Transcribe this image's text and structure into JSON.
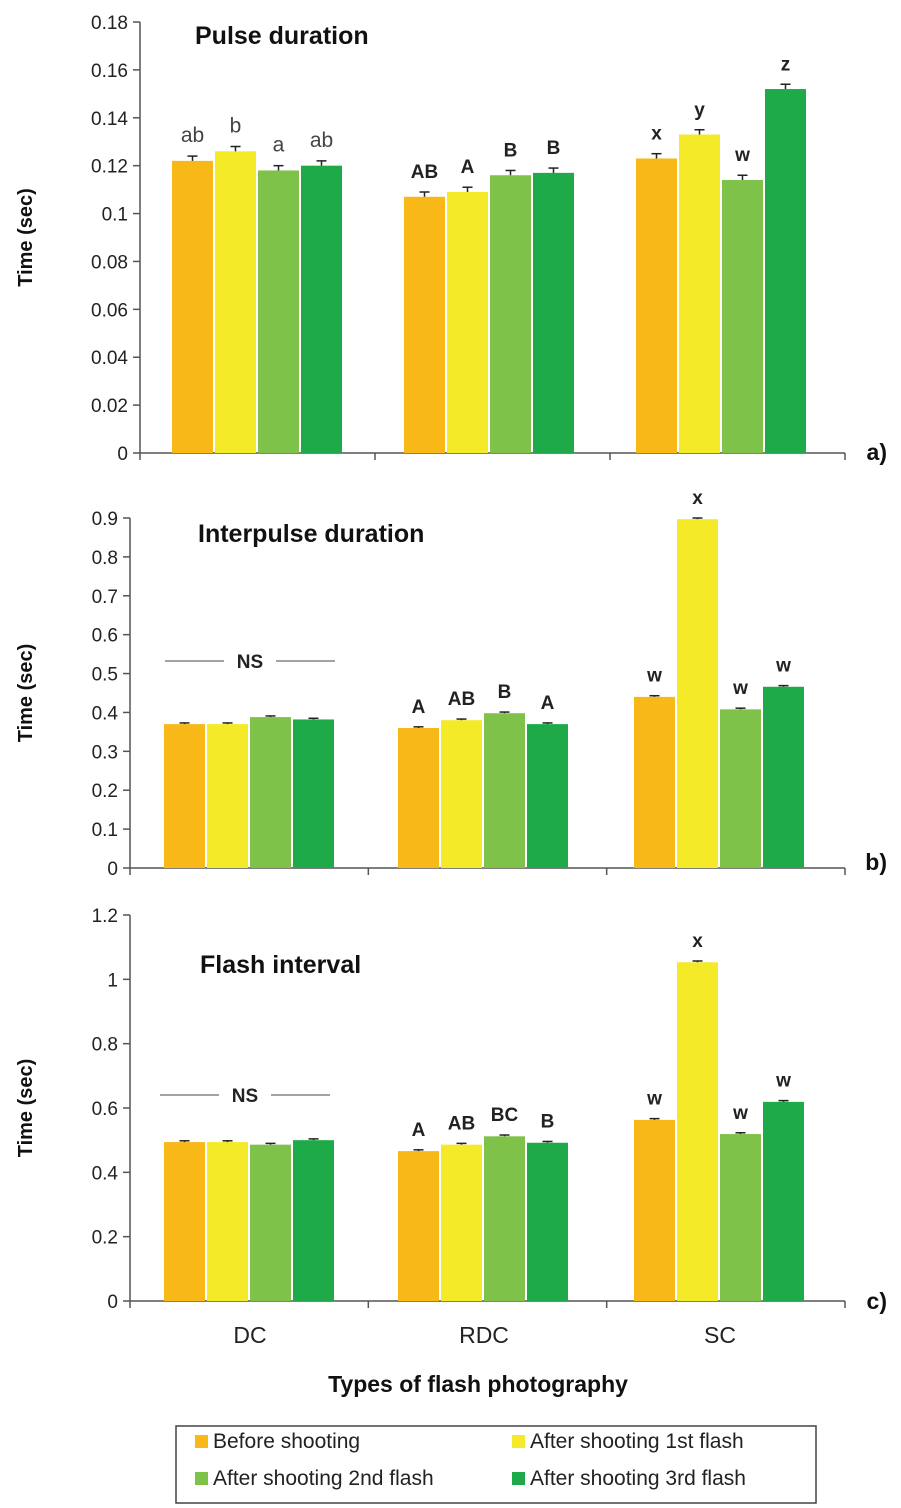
{
  "chart_data": [
    {
      "type": "bar",
      "panel_label": "a)",
      "title": "Pulse duration",
      "ylabel": "Time (sec)",
      "ylim": [
        0,
        0.18
      ],
      "yticks": [
        "0",
        "0.02",
        "0.04",
        "0.06",
        "0.08",
        "0.1",
        "0.12",
        "0.14",
        "0.16",
        "0.18"
      ],
      "categories": [
        "DC",
        "RDC",
        "SC"
      ],
      "series": [
        {
          "name": "Before shooting",
          "values": [
            0.122,
            0.107,
            0.123
          ],
          "errors": [
            0.002,
            0.002,
            0.002
          ]
        },
        {
          "name": "After shooting 1st flash",
          "values": [
            0.126,
            0.109,
            0.133
          ],
          "errors": [
            0.002,
            0.002,
            0.002
          ]
        },
        {
          "name": "After shooting 2nd flash",
          "values": [
            0.118,
            0.116,
            0.114
          ],
          "errors": [
            0.002,
            0.002,
            0.002
          ]
        },
        {
          "name": "After shooting 3rd flash",
          "values": [
            0.12,
            0.117,
            0.152
          ],
          "errors": [
            0.002,
            0.002,
            0.002
          ]
        }
      ],
      "significance_letters": [
        [
          "ab",
          "b",
          "a",
          "ab"
        ],
        [
          "AB",
          "A",
          "B",
          "B"
        ],
        [
          "x",
          "y",
          "w",
          "z"
        ]
      ],
      "ns_label": ""
    },
    {
      "type": "bar",
      "panel_label": "b)",
      "title": "Interpulse duration",
      "ylabel": "Time (sec)",
      "ylim": [
        0,
        0.9
      ],
      "yticks": [
        "0",
        "0.1",
        "0.2",
        "0.3",
        "0.4",
        "0.5",
        "0.6",
        "0.7",
        "0.8",
        "0.9"
      ],
      "categories": [
        "DC",
        "RDC",
        "SC"
      ],
      "series": [
        {
          "name": "Before shooting",
          "values": [
            0.37,
            0.36,
            0.44
          ],
          "errors": [
            0.003,
            0.003,
            0.003
          ]
        },
        {
          "name": "After shooting 1st flash",
          "values": [
            0.37,
            0.38,
            0.897
          ],
          "errors": [
            0.003,
            0.003,
            0.003
          ]
        },
        {
          "name": "After shooting 2nd flash",
          "values": [
            0.388,
            0.398,
            0.408
          ],
          "errors": [
            0.003,
            0.003,
            0.003
          ]
        },
        {
          "name": "After shooting 3rd flash",
          "values": [
            0.382,
            0.37,
            0.466
          ],
          "errors": [
            0.003,
            0.003,
            0.003
          ]
        }
      ],
      "significance_letters": [
        [
          "",
          "",
          "",
          ""
        ],
        [
          "A",
          "AB",
          "B",
          "A"
        ],
        [
          "w",
          "x",
          "w",
          "w"
        ]
      ],
      "ns_label": "NS"
    },
    {
      "type": "bar",
      "panel_label": "c)",
      "title": "Flash interval",
      "ylabel": "Time (sec)",
      "xlabel": "Types of flash photography",
      "ylim": [
        0,
        1.2
      ],
      "yticks": [
        "0",
        "0.2",
        "0.4",
        "0.6",
        "0.8",
        "1",
        "1.2"
      ],
      "categories": [
        "DC",
        "RDC",
        "SC"
      ],
      "series": [
        {
          "name": "Before shooting",
          "values": [
            0.494,
            0.466,
            0.563
          ],
          "errors": [
            0.004,
            0.004,
            0.004
          ]
        },
        {
          "name": "After shooting 1st flash",
          "values": [
            0.494,
            0.486,
            1.053
          ],
          "errors": [
            0.004,
            0.004,
            0.004
          ]
        },
        {
          "name": "After shooting 2nd flash",
          "values": [
            0.486,
            0.512,
            0.519
          ],
          "errors": [
            0.004,
            0.004,
            0.004
          ]
        },
        {
          "name": "After shooting 3rd flash",
          "values": [
            0.5,
            0.492,
            0.619
          ],
          "errors": [
            0.004,
            0.004,
            0.004
          ]
        }
      ],
      "significance_letters": [
        [
          "",
          "",
          "",
          ""
        ],
        [
          "A",
          "AB",
          "BC",
          "B"
        ],
        [
          "w",
          "x",
          "w",
          "w"
        ]
      ],
      "ns_label": "NS"
    }
  ],
  "series_colors": [
    "#f8b818",
    "#f5ea27",
    "#7fc24a",
    "#1faa4a"
  ],
  "legend": {
    "position": "bottom",
    "entries": [
      "Before shooting",
      "After shooting 1st flash",
      "After shooting 2nd flash",
      "After shooting 3rd flash"
    ]
  }
}
